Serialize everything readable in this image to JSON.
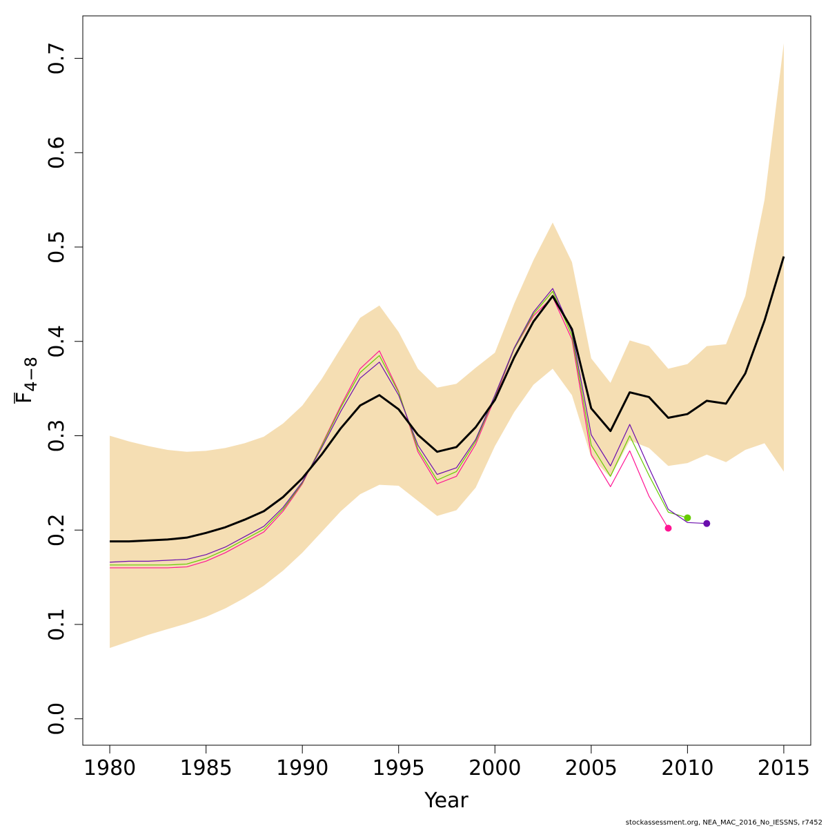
{
  "chart_data": {
    "type": "line",
    "xlabel": "Year",
    "ylabel_main": "F",
    "ylabel_sub": "4−8",
    "xlim": [
      1978.6,
      2016.4
    ],
    "ylim": [
      -0.028,
      0.745
    ],
    "x_ticks": [
      1980,
      1985,
      1990,
      1995,
      2000,
      2005,
      2010,
      2015
    ],
    "x_tick_labels": [
      "1980",
      "1985",
      "1990",
      "1995",
      "2000",
      "2005",
      "2010",
      "2015"
    ],
    "y_ticks": [
      0.0,
      0.1,
      0.2,
      0.3,
      0.4,
      0.5,
      0.6,
      0.7
    ],
    "y_tick_labels": [
      "0.0",
      "0.1",
      "0.2",
      "0.3",
      "0.4",
      "0.5",
      "0.6",
      "0.7"
    ],
    "band_color": "#f5deb3",
    "main_color": "#000000",
    "grid": false,
    "confidence_band": {
      "x": [
        1980,
        1981,
        1982,
        1983,
        1984,
        1985,
        1986,
        1987,
        1988,
        1989,
        1990,
        1991,
        1992,
        1993,
        1994,
        1995,
        1996,
        1997,
        1998,
        1999,
        2000,
        2001,
        2002,
        2003,
        2004,
        2005,
        2006,
        2007,
        2008,
        2009,
        2010,
        2011,
        2012,
        2013,
        2014,
        2015
      ],
      "upper": [
        0.3,
        0.294,
        0.289,
        0.285,
        0.283,
        0.284,
        0.287,
        0.292,
        0.299,
        0.313,
        0.332,
        0.36,
        0.393,
        0.425,
        0.438,
        0.41,
        0.371,
        0.351,
        0.355,
        0.372,
        0.388,
        0.44,
        0.486,
        0.526,
        0.484,
        0.382,
        0.356,
        0.401,
        0.395,
        0.371,
        0.376,
        0.395,
        0.397,
        0.448,
        0.55,
        0.716
      ],
      "lower": [
        0.075,
        0.082,
        0.089,
        0.095,
        0.101,
        0.108,
        0.117,
        0.128,
        0.141,
        0.157,
        0.176,
        0.198,
        0.22,
        0.238,
        0.248,
        0.247,
        0.231,
        0.215,
        0.221,
        0.245,
        0.289,
        0.325,
        0.354,
        0.371,
        0.343,
        0.277,
        0.256,
        0.295,
        0.287,
        0.268,
        0.271,
        0.28,
        0.272,
        0.285,
        0.292,
        0.262
      ]
    },
    "series": [
      {
        "color": "#000000",
        "width": 3,
        "x": [
          1980,
          1981,
          1982,
          1983,
          1984,
          1985,
          1986,
          1987,
          1988,
          1989,
          1990,
          1991,
          1992,
          1993,
          1994,
          1995,
          1996,
          1997,
          1998,
          1999,
          2000,
          2001,
          2002,
          2003,
          2004,
          2005,
          2006,
          2007,
          2008,
          2009,
          2010,
          2011,
          2012,
          2013,
          2014,
          2015
        ],
        "values": [
          0.188,
          0.188,
          0.189,
          0.19,
          0.192,
          0.197,
          0.203,
          0.211,
          0.22,
          0.235,
          0.255,
          0.28,
          0.308,
          0.332,
          0.343,
          0.328,
          0.301,
          0.283,
          0.288,
          0.309,
          0.338,
          0.383,
          0.421,
          0.448,
          0.413,
          0.329,
          0.305,
          0.346,
          0.341,
          0.319,
          0.323,
          0.337,
          0.334,
          0.366,
          0.422,
          0.49
        ],
        "end_marker": false
      },
      {
        "color": "#ff1493",
        "width": 1.2,
        "x": [
          1980,
          1981,
          1982,
          1983,
          1984,
          1985,
          1986,
          1987,
          1988,
          1989,
          1990,
          1991,
          1992,
          1993,
          1994,
          1995,
          1996,
          1997,
          1998,
          1999,
          2000,
          2001,
          2002,
          2003,
          2004,
          2005,
          2006,
          2007,
          2008,
          2009
        ],
        "values": [
          0.16,
          0.16,
          0.16,
          0.16,
          0.161,
          0.167,
          0.176,
          0.187,
          0.198,
          0.22,
          0.249,
          0.29,
          0.332,
          0.371,
          0.39,
          0.347,
          0.283,
          0.249,
          0.257,
          0.291,
          0.34,
          0.392,
          0.427,
          0.447,
          0.402,
          0.28,
          0.246,
          0.284,
          0.236,
          0.202
        ],
        "end_marker": true
      },
      {
        "color": "#66cc00",
        "width": 1.2,
        "x": [
          1980,
          1981,
          1982,
          1983,
          1984,
          1985,
          1986,
          1987,
          1988,
          1989,
          1990,
          1991,
          1992,
          1993,
          1994,
          1995,
          1996,
          1997,
          1998,
          1999,
          2000,
          2001,
          2002,
          2003,
          2004,
          2005,
          2006,
          2007,
          2008,
          2009,
          2010
        ],
        "values": [
          0.163,
          0.163,
          0.163,
          0.163,
          0.164,
          0.17,
          0.179,
          0.19,
          0.201,
          0.222,
          0.25,
          0.289,
          0.33,
          0.367,
          0.385,
          0.346,
          0.286,
          0.253,
          0.262,
          0.294,
          0.342,
          0.392,
          0.429,
          0.453,
          0.406,
          0.29,
          0.257,
          0.3,
          0.258,
          0.219,
          0.213
        ],
        "end_marker": true
      },
      {
        "color": "#6a0dad",
        "width": 1.2,
        "x": [
          1980,
          1981,
          1982,
          1983,
          1984,
          1985,
          1986,
          1987,
          1988,
          1989,
          1990,
          1991,
          1992,
          1993,
          1994,
          1995,
          1996,
          1997,
          1998,
          1999,
          2000,
          2001,
          2002,
          2003,
          2004,
          2005,
          2006,
          2007,
          2008,
          2009,
          2010,
          2011
        ],
        "values": [
          0.166,
          0.167,
          0.167,
          0.168,
          0.169,
          0.174,
          0.182,
          0.193,
          0.204,
          0.224,
          0.251,
          0.287,
          0.326,
          0.361,
          0.378,
          0.343,
          0.29,
          0.259,
          0.266,
          0.296,
          0.343,
          0.393,
          0.431,
          0.456,
          0.41,
          0.301,
          0.268,
          0.312,
          0.266,
          0.222,
          0.208,
          0.207
        ],
        "end_marker": true
      }
    ]
  },
  "footer": "stockassessment.org, NEA_MAC_2016_No_IESSNS, r7452"
}
